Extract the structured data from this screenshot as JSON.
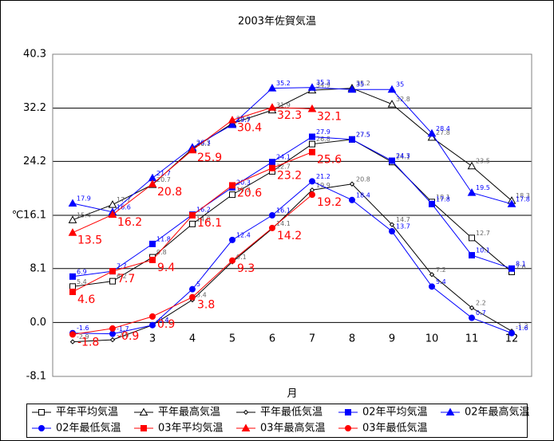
{
  "chart_data": {
    "type": "line",
    "title": "2003年佐賀気温",
    "x_label": "月",
    "y_label": "℃",
    "categories": [
      null,
      null,
      "3",
      "4",
      "5",
      "6",
      "7",
      "8",
      "9",
      "10",
      "11",
      "12"
    ],
    "ylim": [
      -8.1,
      40.3
    ],
    "yticks": [
      -8.1,
      {
        "value": 0,
        "label": "0.0"
      },
      8.1,
      16.1,
      24.2,
      32.2,
      40.3
    ],
    "grid": true,
    "legend": "bottom",
    "series": [
      {
        "name": "平年平均気温",
        "color": "#000000",
        "marker": "open-square",
        "values": [
          5.4,
          6.2,
          9.8,
          14.8,
          19.2,
          22.7,
          26.8,
          27.5,
          24.1,
          18.1,
          12.7,
          7.6
        ]
      },
      {
        "name": "平年最高気温",
        "color": "#000000",
        "marker": "open-triangle",
        "values": [
          15.4,
          17.7,
          20.7,
          26.1,
          29.9,
          31.9,
          34.9,
          35.2,
          32.8,
          27.8,
          23.5,
          18.3
        ]
      },
      {
        "name": "平年最低気温",
        "color": "#000000",
        "marker": "diamond",
        "values": [
          -2.9,
          -2.6,
          -0.4,
          3.4,
          9.1,
          14.1,
          19.9,
          20.8,
          14.7,
          7.2,
          2.2,
          -1.3
        ]
      },
      {
        "name": "02年平均気温",
        "color": "#0000ff",
        "marker": "square",
        "values": [
          6.9,
          7.7,
          11.8,
          16.2,
          20.3,
          24.1,
          27.9,
          27.5,
          24.3,
          17.8,
          10.1,
          8.1
        ]
      },
      {
        "name": "02年最高気温",
        "color": "#0000ff",
        "marker": "triangle",
        "values": [
          17.9,
          16.6,
          21.7,
          26.3,
          29.7,
          35.2,
          35.3,
          35.0,
          35.0,
          28.4,
          19.5,
          17.8
        ]
      },
      {
        "name": "02年最低気温",
        "color": "#0000ff",
        "marker": "circle",
        "values": [
          -1.6,
          -1.7,
          -0.4,
          5.0,
          12.4,
          16.1,
          21.2,
          18.4,
          13.7,
          5.4,
          0.7,
          -1.6
        ]
      },
      {
        "name": "03年平均気温",
        "color": "#ff0000",
        "marker": "square",
        "values": [
          4.6,
          7.7,
          9.4,
          16.1,
          20.6,
          23.2,
          25.6,
          null,
          null,
          null,
          null,
          null
        ]
      },
      {
        "name": "03年最高気温",
        "color": "#ff0000",
        "marker": "triangle",
        "values": [
          13.5,
          16.2,
          20.8,
          25.9,
          30.4,
          32.3,
          32.1,
          null,
          null,
          null,
          null,
          null
        ]
      },
      {
        "name": "03年最低気温",
        "color": "#ff0000",
        "marker": "circle",
        "values": [
          -1.8,
          -0.9,
          0.9,
          3.8,
          9.3,
          14.2,
          19.2,
          null,
          null,
          null,
          null,
          null
        ]
      }
    ]
  }
}
